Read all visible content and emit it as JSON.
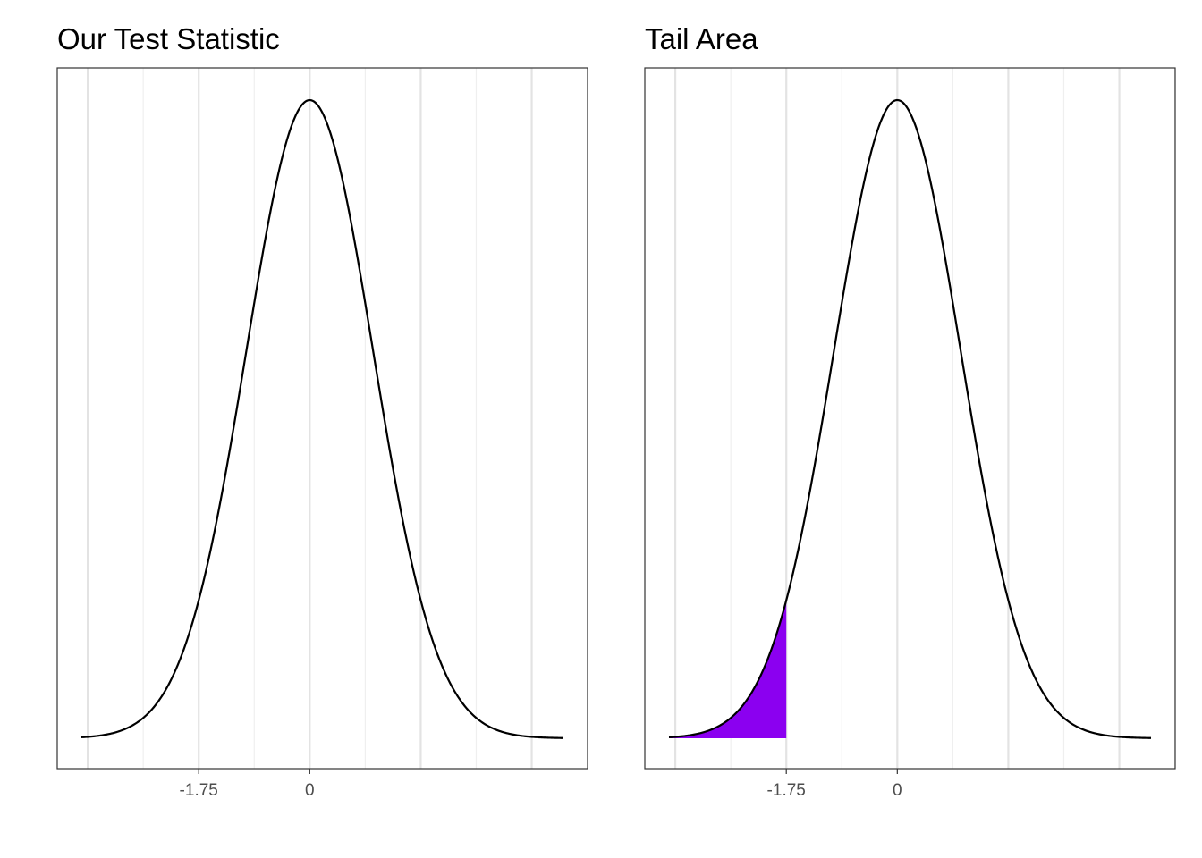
{
  "chart_data": [
    {
      "type": "area",
      "title": "Our Test Statistic",
      "distribution": "standard normal density",
      "xlim": [
        -4,
        4
      ],
      "x_ticks": [
        -1.75,
        0
      ],
      "x_tick_labels": [
        "-1.75",
        "0"
      ],
      "xlabel": "",
      "ylabel": "",
      "y_axis_labels_shown": false,
      "grid": true,
      "line_color": "#000000",
      "shaded_region": null
    },
    {
      "type": "area",
      "title": "Tail Area",
      "distribution": "standard normal density",
      "xlim": [
        -4,
        4
      ],
      "x_ticks": [
        -1.75,
        0
      ],
      "x_tick_labels": [
        "-1.75",
        "0"
      ],
      "xlabel": "",
      "ylabel": "",
      "y_axis_labels_shown": false,
      "grid": true,
      "line_color": "#000000",
      "shaded_region": {
        "from": -4,
        "to": -1.75,
        "color": "#8b00f0"
      }
    }
  ]
}
